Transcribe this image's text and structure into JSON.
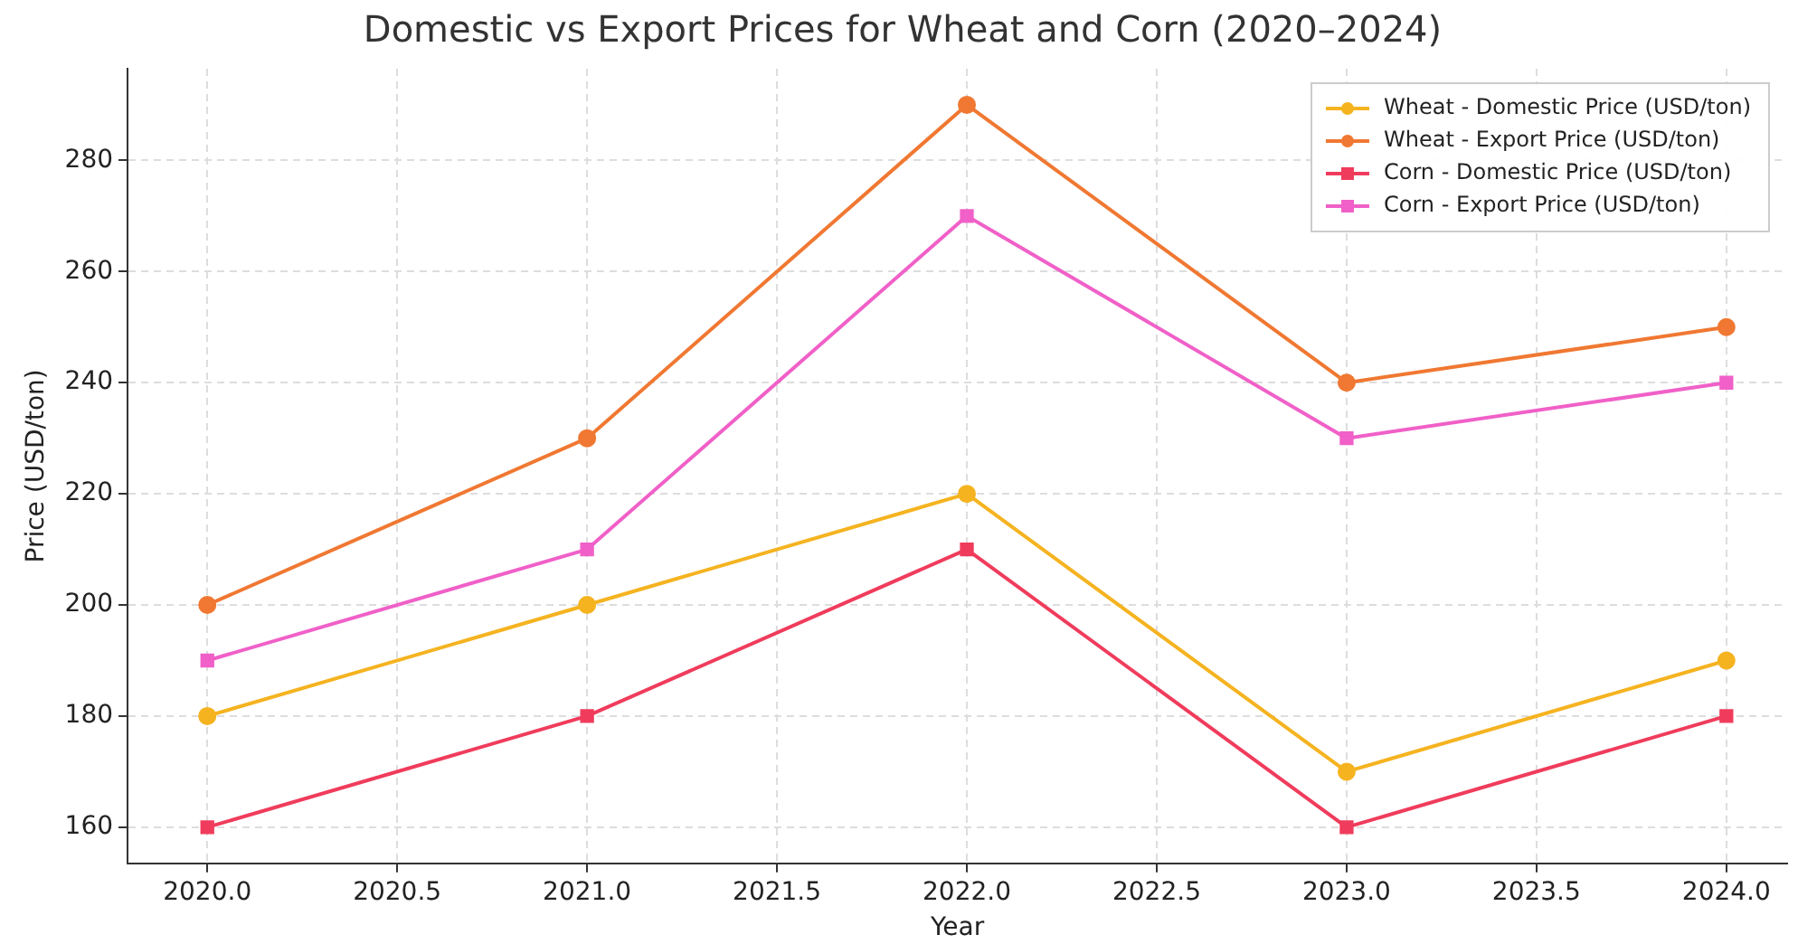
{
  "chart_data": {
    "type": "line",
    "title": "Domestic vs Export Prices for Wheat and Corn (2020–2024)",
    "xlabel": "Year",
    "ylabel": "Price (USD/ton)",
    "x": [
      2020,
      2021,
      2022,
      2023,
      2024
    ],
    "series": [
      {
        "name": "Wheat - Domestic Price (USD/ton)",
        "color": "#f5b320",
        "marker": "circle",
        "values": [
          180,
          200,
          220,
          170,
          190
        ]
      },
      {
        "name": "Wheat - Export Price (USD/ton)",
        "color": "#f07832",
        "marker": "circle",
        "values": [
          200,
          230,
          290,
          240,
          250
        ]
      },
      {
        "name": "Corn - Domestic Price (USD/ton)",
        "color": "#f03c5c",
        "marker": "square",
        "values": [
          160,
          180,
          210,
          160,
          180
        ]
      },
      {
        "name": "Corn - Export Price (USD/ton)",
        "color": "#f060c8",
        "marker": "square",
        "values": [
          190,
          210,
          270,
          230,
          240
        ]
      }
    ],
    "xlim": [
      2019.79,
      2024.16
    ],
    "xticks": [
      {
        "value": 2020,
        "label": "2020.0"
      },
      {
        "value": 2020.5,
        "label": "2020.5"
      },
      {
        "value": 2021,
        "label": "2021.0"
      },
      {
        "value": 2021.5,
        "label": "2021.5"
      },
      {
        "value": 2022,
        "label": "2022.0"
      },
      {
        "value": 2022.5,
        "label": "2022.5"
      },
      {
        "value": 2023,
        "label": "2023.0"
      },
      {
        "value": 2023.5,
        "label": "2023.5"
      },
      {
        "value": 2024,
        "label": "2024.0"
      }
    ],
    "ylim": [
      153.5,
      296.5
    ],
    "yticks": [
      160,
      180,
      200,
      220,
      240,
      260,
      280
    ],
    "grid": true,
    "legend": "top right",
    "line_style": "solid"
  }
}
